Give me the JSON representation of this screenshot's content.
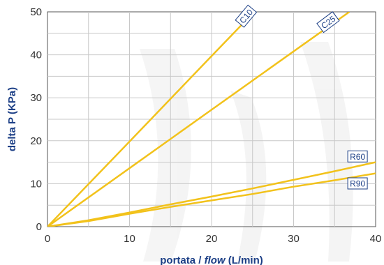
{
  "chart_data": {
    "type": "line",
    "xlabel_prefix": "portata / ",
    "xlabel_italic": "flow",
    "xlabel_suffix": " (L/min)",
    "ylabel": "delta P (KPa)",
    "xlim": [
      0,
      40
    ],
    "ylim": [
      0,
      50
    ],
    "x_ticks": [
      0,
      10,
      20,
      30,
      40
    ],
    "y_ticks": [
      0,
      10,
      20,
      30,
      40,
      50
    ],
    "grid": true,
    "legend": "inline labels at line ends",
    "line_color": "#f2c21b",
    "label_color": "#1c3f86",
    "series": [
      {
        "name": "C10",
        "x": [
          0,
          10,
          20,
          25.2
        ],
        "y": [
          0,
          19.8,
          39.7,
          50
        ]
      },
      {
        "name": "C25",
        "x": [
          0,
          10,
          20,
          30,
          36.8
        ],
        "y": [
          0,
          13.6,
          27.2,
          40.8,
          50
        ]
      },
      {
        "name": "R60",
        "x": [
          0,
          5,
          10,
          15,
          20,
          25,
          30,
          35,
          40
        ],
        "y": [
          0,
          1.5,
          3.3,
          5.2,
          7.0,
          8.9,
          10.9,
          12.9,
          15.0
        ]
      },
      {
        "name": "R90",
        "x": [
          0,
          5,
          8,
          10,
          15,
          20,
          25,
          30,
          35,
          40
        ],
        "y": [
          0,
          1.3,
          2.3,
          3.0,
          4.6,
          6.1,
          7.6,
          9.3,
          10.8,
          12.4
        ]
      }
    ]
  }
}
